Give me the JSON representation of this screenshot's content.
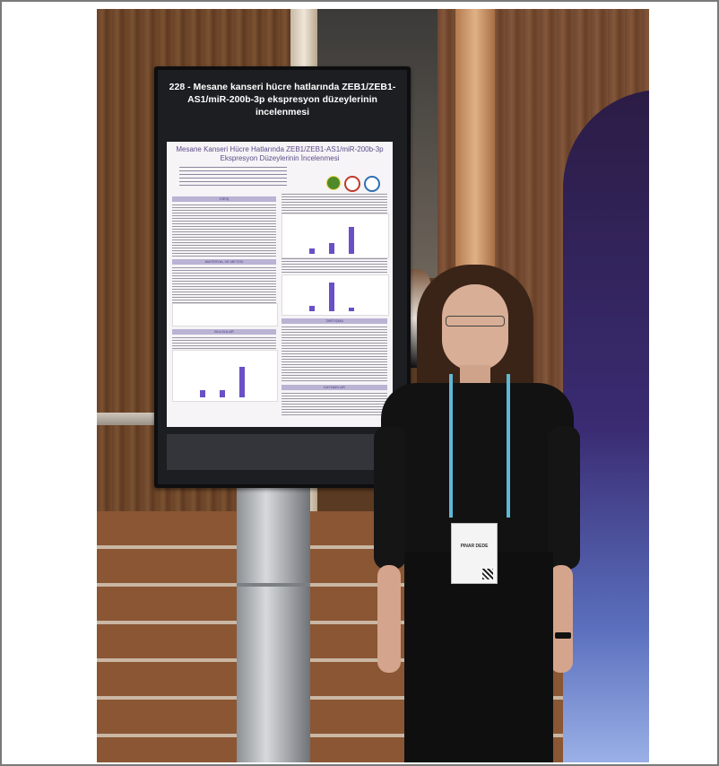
{
  "poster_board": {
    "title": "228 - Mesane kanseri hücre hatlarında ZEB1/ZEB1-AS1/miR-200b-3p ekspresyon düzeylerinin incelenmesi"
  },
  "poster": {
    "title": "Mesane Kanseri Hücre Hatlarında ZEB1/ZEB1-AS1/miR-200b-3p Ekspresyon Düzeylerinin İncelenmesi",
    "sections": [
      "GİRİŞ",
      "MATERYAL VE METOD",
      "BULGULAR",
      "TARTIŞMA",
      "KAYNAKLAR"
    ],
    "logo_colors": [
      "#4f8a2a",
      "#c0392b",
      "#2f6fb5"
    ]
  },
  "badge": {
    "name": "PINAR DEDE"
  },
  "colors": {
    "board": "#1d1e22",
    "poster_accent": "#6a4fc6",
    "lanyard": "#5fb8d6"
  }
}
